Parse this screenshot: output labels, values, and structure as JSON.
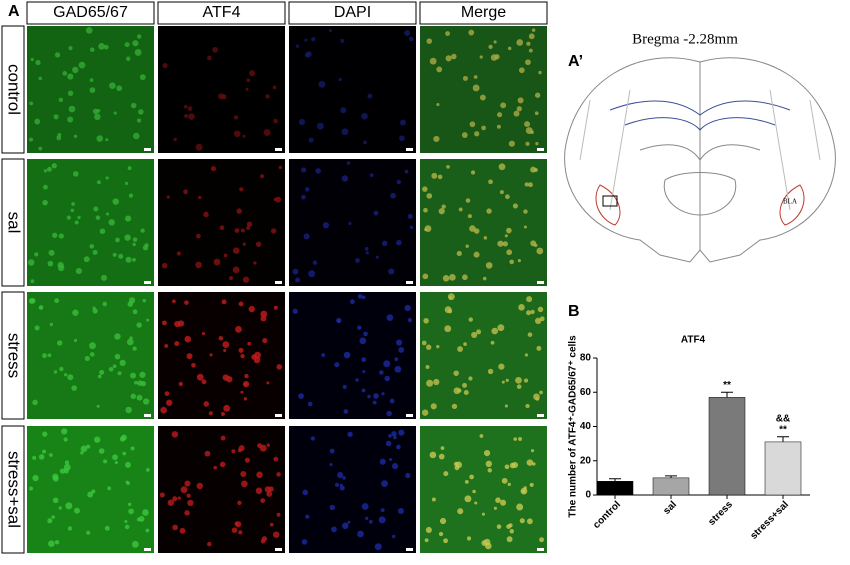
{
  "panel_a": {
    "label": "A",
    "columns": [
      "GAD65/67",
      "ATF4",
      "DAPI",
      "Merge"
    ],
    "rows": [
      "control",
      "sal",
      "stress",
      "stress+sal"
    ]
  },
  "panel_a_prime": {
    "label": "A’",
    "title": "Bregma -2.28mm",
    "region": "BLA"
  },
  "panel_b": {
    "label": "B"
  },
  "chart_data": {
    "type": "bar",
    "title": "ATF4",
    "y_label": "The number of ATF4⁺-GAD65/67⁺ cells",
    "categories": [
      "control",
      "sal",
      "stress",
      "stress+sal"
    ],
    "values": [
      8,
      10,
      57,
      31
    ],
    "errors": [
      1.5,
      1.2,
      3,
      3
    ],
    "colors": [
      "#000000",
      "#a6a6a6",
      "#7a7a7a",
      "#d9d9d9"
    ],
    "stars": [
      null,
      null,
      "**",
      "**"
    ],
    "ampersands": [
      null,
      null,
      null,
      "&&"
    ],
    "ylim": [
      0,
      80
    ],
    "yticks": [
      0,
      20,
      40,
      60,
      80
    ]
  }
}
